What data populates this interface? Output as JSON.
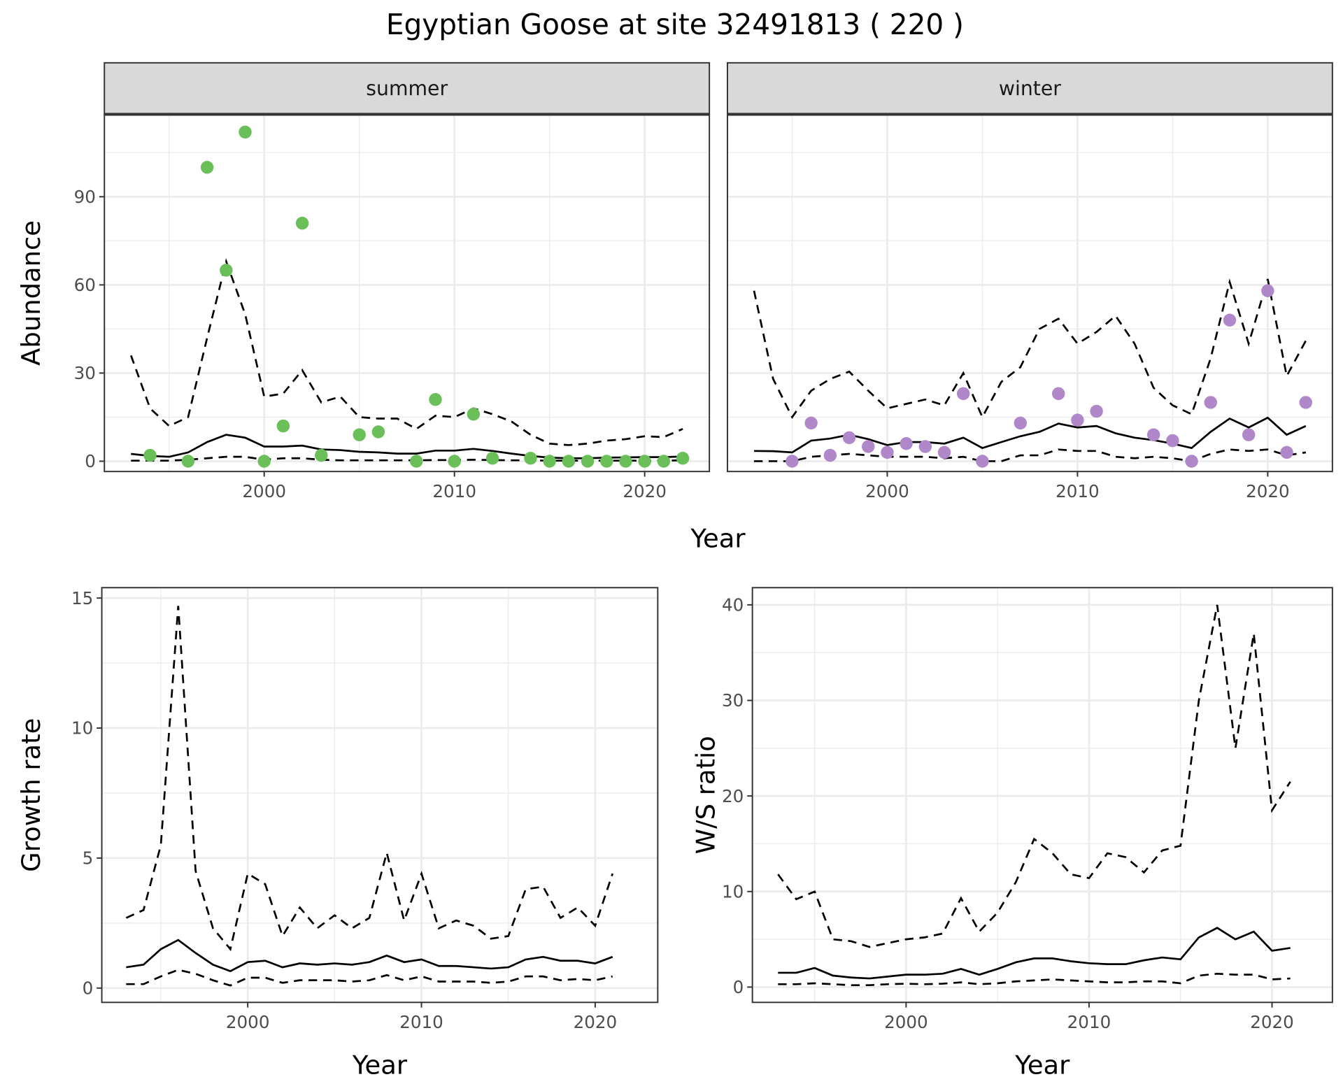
{
  "title": "Egyptian Goose at site 32491813 ( 220 )",
  "colors": {
    "summer": "#6bbf59",
    "winter": "#b088c9",
    "line": "#000000",
    "strip": "#d9d9d9",
    "grid": "#ebebeb"
  },
  "chart_data": [
    {
      "type": "scatter+line",
      "panel": "summer",
      "strip_label": "summer",
      "xlabel": "Year",
      "ylabel": "Abundance",
      "xlim": [
        1991.6,
        2023.4
      ],
      "ylim": [
        -3.5,
        118
      ],
      "xticks": [
        2000,
        2010,
        2020
      ],
      "yticks": [
        0,
        30,
        60,
        90
      ],
      "points": {
        "x": [
          1994,
          1996,
          1997,
          1998,
          1999,
          2000,
          2001,
          2002,
          2003,
          2005,
          2006,
          2008,
          2009,
          2010,
          2011,
          2012,
          2014,
          2015,
          2016,
          2017,
          2018,
          2019,
          2020,
          2021,
          2022
        ],
        "y": [
          2,
          0,
          100,
          65,
          112,
          0,
          12,
          81,
          2,
          9,
          10,
          0,
          21,
          0,
          16,
          1,
          1,
          0,
          0,
          0,
          0,
          0,
          0,
          0,
          1
        ]
      },
      "line_x": [
        1993,
        1994,
        1995,
        1996,
        1997,
        1998,
        1999,
        2000,
        2001,
        2002,
        2003,
        2004,
        2005,
        2006,
        2007,
        2008,
        2009,
        2010,
        2011,
        2012,
        2013,
        2014,
        2015,
        2016,
        2017,
        2018,
        2019,
        2020,
        2021,
        2022
      ],
      "median": [
        2.5,
        1.8,
        1.5,
        3,
        6.5,
        9,
        8,
        5,
        5,
        5.3,
        4,
        3.8,
        3.2,
        3,
        2.6,
        2.6,
        3.6,
        3.6,
        4.2,
        3.5,
        2.6,
        1.8,
        1.2,
        1,
        1,
        1.2,
        1.3,
        1.4,
        1.4,
        1.6
      ],
      "upper": [
        36,
        18,
        12,
        15,
        42,
        68,
        50,
        22,
        23,
        31,
        20,
        22,
        15,
        14.5,
        14.5,
        11,
        15.5,
        15,
        18,
        16,
        13.5,
        9,
        6,
        5.5,
        6,
        7,
        7.5,
        8.5,
        8.2,
        11
      ],
      "lower": [
        0.2,
        0.2,
        0.2,
        0.5,
        1,
        1.5,
        1.5,
        0.5,
        1,
        1,
        0.5,
        0.3,
        0.3,
        0.3,
        0.3,
        0.3,
        0.4,
        0.4,
        0.5,
        0.4,
        0.3,
        0.3,
        0.2,
        0.2,
        0.2,
        0.2,
        0.2,
        0.2,
        0.2,
        0.3
      ]
    },
    {
      "type": "scatter+line",
      "panel": "winter",
      "strip_label": "winter",
      "xlabel": "Year",
      "ylabel": "Abundance",
      "xlim": [
        1991.6,
        2023.4
      ],
      "ylim": [
        -3.5,
        118
      ],
      "xticks": [
        2000,
        2010,
        2020
      ],
      "yticks": [
        0,
        30,
        60,
        90
      ],
      "points": {
        "x": [
          1995,
          1996,
          1997,
          1998,
          1999,
          2000,
          2001,
          2002,
          2003,
          2004,
          2005,
          2007,
          2009,
          2010,
          2011,
          2014,
          2015,
          2016,
          2017,
          2018,
          2019,
          2020,
          2021,
          2022
        ],
        "y": [
          0,
          13,
          2,
          8,
          5,
          3,
          6,
          5,
          3,
          23,
          0,
          13,
          23,
          14,
          17,
          9,
          7,
          0,
          20,
          48,
          9,
          58,
          3,
          20
        ]
      },
      "line_x": [
        1993,
        1994,
        1995,
        1996,
        1997,
        1998,
        1999,
        2000,
        2001,
        2002,
        2003,
        2004,
        2005,
        2006,
        2007,
        2008,
        2009,
        2010,
        2011,
        2012,
        2013,
        2014,
        2015,
        2016,
        2017,
        2018,
        2019,
        2020,
        2021,
        2022
      ],
      "median": [
        3.5,
        3.4,
        3,
        7,
        7.7,
        9,
        7.5,
        5.5,
        6.5,
        6.5,
        6,
        8,
        4.5,
        6.5,
        8.5,
        10,
        12.8,
        11.5,
        12,
        9.5,
        8,
        7.2,
        6,
        4.5,
        10,
        14.5,
        11.5,
        14.8,
        9,
        12
      ],
      "upper": [
        58,
        28,
        15,
        24,
        28,
        30.5,
        24,
        18,
        19.5,
        21,
        19,
        30,
        15,
        27,
        32,
        45,
        48.5,
        40,
        44,
        49.5,
        40,
        25,
        19,
        16,
        35,
        61,
        40,
        62,
        29,
        41
      ],
      "lower": [
        0,
        0,
        0,
        1.5,
        2,
        2.5,
        2,
        1.5,
        1.5,
        1.5,
        1,
        1.5,
        0,
        0,
        2,
        2,
        4,
        3.5,
        3.5,
        1.5,
        1,
        1.5,
        1,
        0,
        2.5,
        4,
        3.5,
        4,
        2,
        3
      ]
    },
    {
      "type": "line",
      "panel": "growth",
      "xlabel": "Year",
      "ylabel": "Growth rate",
      "xlim": [
        1991.6,
        2023.6
      ],
      "ylim": [
        -0.55,
        15.4
      ],
      "xticks": [
        2000,
        2010,
        2020
      ],
      "yticks": [
        0,
        5,
        10,
        15
      ],
      "line_x": [
        1993,
        1994,
        1995,
        1996,
        1997,
        1998,
        1999,
        2000,
        2001,
        2002,
        2003,
        2004,
        2005,
        2006,
        2007,
        2008,
        2009,
        2010,
        2011,
        2012,
        2013,
        2014,
        2015,
        2016,
        2017,
        2018,
        2019,
        2020,
        2021
      ],
      "median": [
        0.8,
        0.9,
        1.5,
        1.85,
        1.35,
        0.9,
        0.65,
        1,
        1.05,
        0.8,
        0.95,
        0.9,
        0.95,
        0.9,
        1,
        1.25,
        1,
        1.1,
        0.85,
        0.85,
        0.8,
        0.75,
        0.8,
        1.1,
        1.2,
        1.05,
        1.05,
        0.95,
        1.2
      ],
      "upper": [
        2.7,
        3,
        5.5,
        14.7,
        4.5,
        2.3,
        1.5,
        4.4,
        4,
        2,
        3.1,
        2.3,
        2.8,
        2.3,
        2.7,
        5.2,
        2.6,
        4.4,
        2.3,
        2.6,
        2.4,
        1.9,
        2,
        3.8,
        3.9,
        2.7,
        3.1,
        2.4,
        4.4
      ],
      "lower": [
        0.15,
        0.15,
        0.45,
        0.7,
        0.55,
        0.3,
        0.1,
        0.4,
        0.4,
        0.2,
        0.3,
        0.3,
        0.3,
        0.25,
        0.3,
        0.5,
        0.3,
        0.45,
        0.25,
        0.25,
        0.25,
        0.2,
        0.25,
        0.45,
        0.45,
        0.3,
        0.35,
        0.3,
        0.45
      ]
    },
    {
      "type": "line",
      "panel": "ws_ratio",
      "xlabel": "Year",
      "ylabel": "W/S ratio",
      "xlim": [
        1991.6,
        2023.3
      ],
      "ylim": [
        -1.6,
        41.8
      ],
      "xticks": [
        2000,
        2010,
        2020
      ],
      "yticks": [
        0,
        10,
        20,
        30,
        40
      ],
      "line_x": [
        1993,
        1994,
        1995,
        1996,
        1997,
        1998,
        1999,
        2000,
        2001,
        2002,
        2003,
        2004,
        2005,
        2006,
        2007,
        2008,
        2009,
        2010,
        2011,
        2012,
        2013,
        2014,
        2015,
        2016,
        2017,
        2018,
        2019,
        2020,
        2021
      ],
      "median": [
        1.5,
        1.5,
        2,
        1.2,
        1,
        0.9,
        1.1,
        1.3,
        1.3,
        1.4,
        1.9,
        1.3,
        1.9,
        2.6,
        3,
        3,
        2.7,
        2.5,
        2.4,
        2.4,
        2.8,
        3.1,
        2.9,
        5.2,
        6.2,
        5,
        5.8,
        3.8,
        4.1
      ],
      "upper": [
        11.8,
        9.2,
        10,
        5,
        4.8,
        4.2,
        4.6,
        5,
        5.2,
        5.6,
        9.3,
        5.8,
        7.8,
        11,
        15.5,
        14,
        11.8,
        11.4,
        14,
        13.6,
        12,
        14.3,
        14.8,
        30,
        40,
        25,
        37,
        18.5,
        21.5
      ],
      "lower": [
        0.3,
        0.3,
        0.4,
        0.3,
        0.2,
        0.2,
        0.3,
        0.35,
        0.3,
        0.35,
        0.5,
        0.3,
        0.4,
        0.6,
        0.7,
        0.8,
        0.7,
        0.6,
        0.5,
        0.5,
        0.6,
        0.6,
        0.4,
        1.2,
        1.4,
        1.3,
        1.3,
        0.8,
        0.9
      ]
    }
  ]
}
